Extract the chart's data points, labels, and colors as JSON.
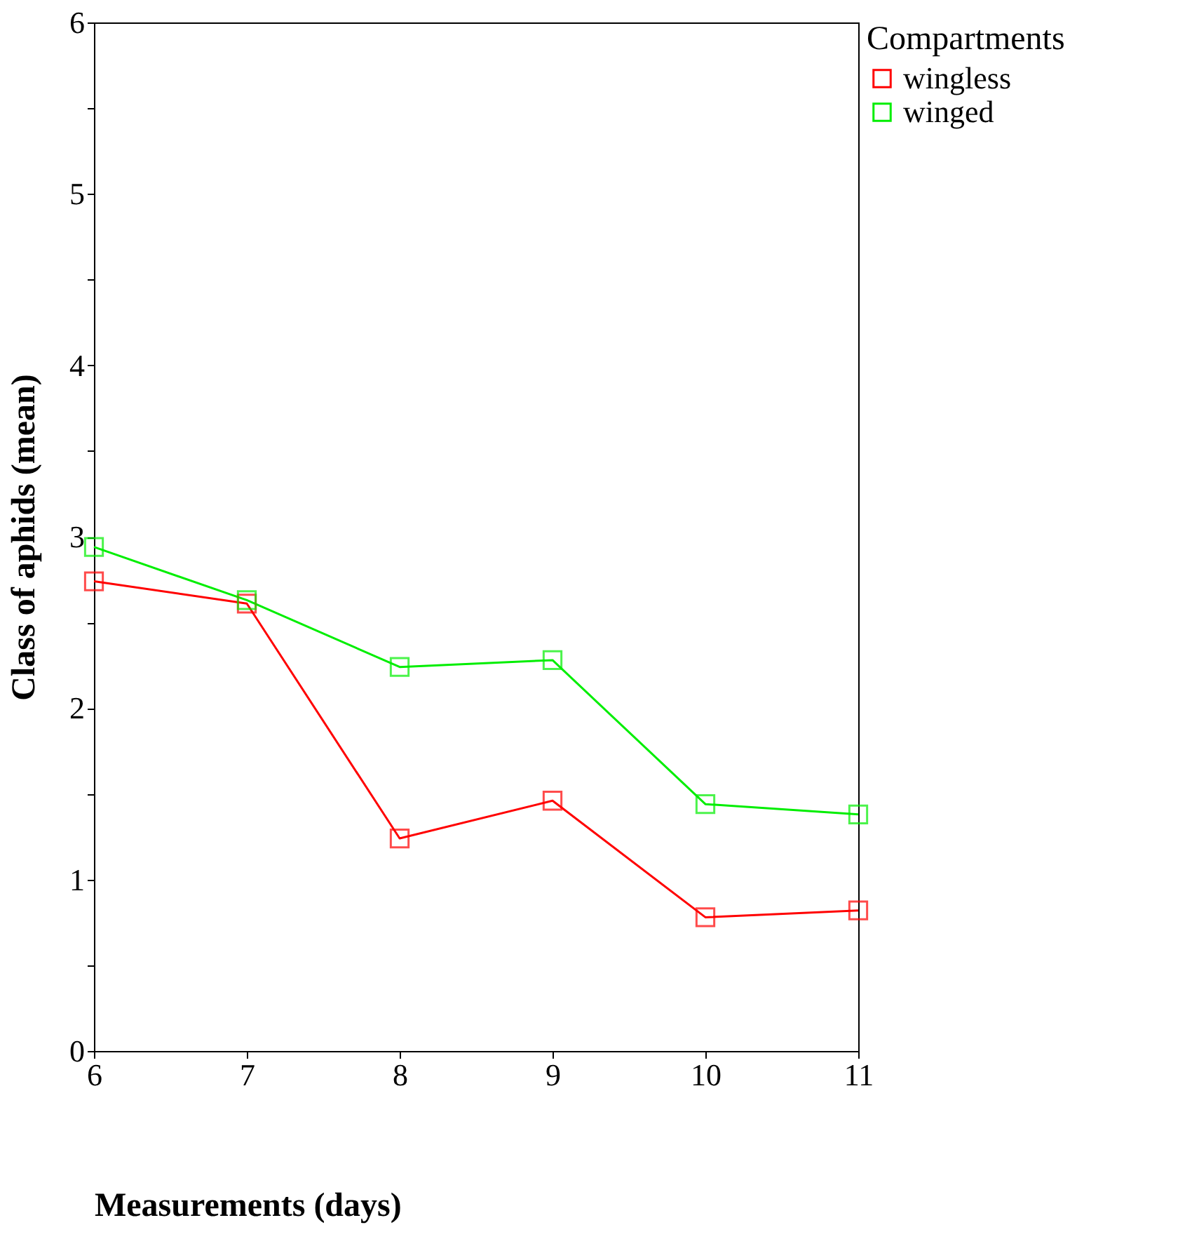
{
  "chart_data": {
    "type": "line",
    "xlabel": "Measurements (days)",
    "ylabel": "Class of aphids (mean)",
    "legend_title": "Compartments",
    "x": [
      6,
      7,
      8,
      9,
      10,
      11
    ],
    "series": [
      {
        "name": "wingless",
        "color": "#ff0000",
        "values": [
          2.74,
          2.61,
          1.24,
          1.46,
          0.78,
          0.82
        ]
      },
      {
        "name": "winged",
        "color": "#00ee00",
        "values": [
          2.94,
          2.63,
          2.24,
          2.28,
          1.44,
          1.38
        ]
      }
    ],
    "xlim": [
      6,
      11
    ],
    "xticks": [
      6,
      7,
      8,
      9,
      10,
      11
    ],
    "ylim": [
      0,
      6
    ],
    "yticks": [
      0,
      {
        "value": 0.5,
        "label": null
      },
      1,
      {
        "value": 1.5,
        "label": null
      },
      2,
      {
        "value": 2.5,
        "label": null
      },
      3,
      {
        "value": 3.5,
        "label": null
      },
      4,
      {
        "value": 4.5,
        "label": null
      },
      5,
      {
        "value": 5.5,
        "label": null
      },
      6
    ],
    "grid": false,
    "legend": "right",
    "marker": "square",
    "line_style": "solid"
  }
}
